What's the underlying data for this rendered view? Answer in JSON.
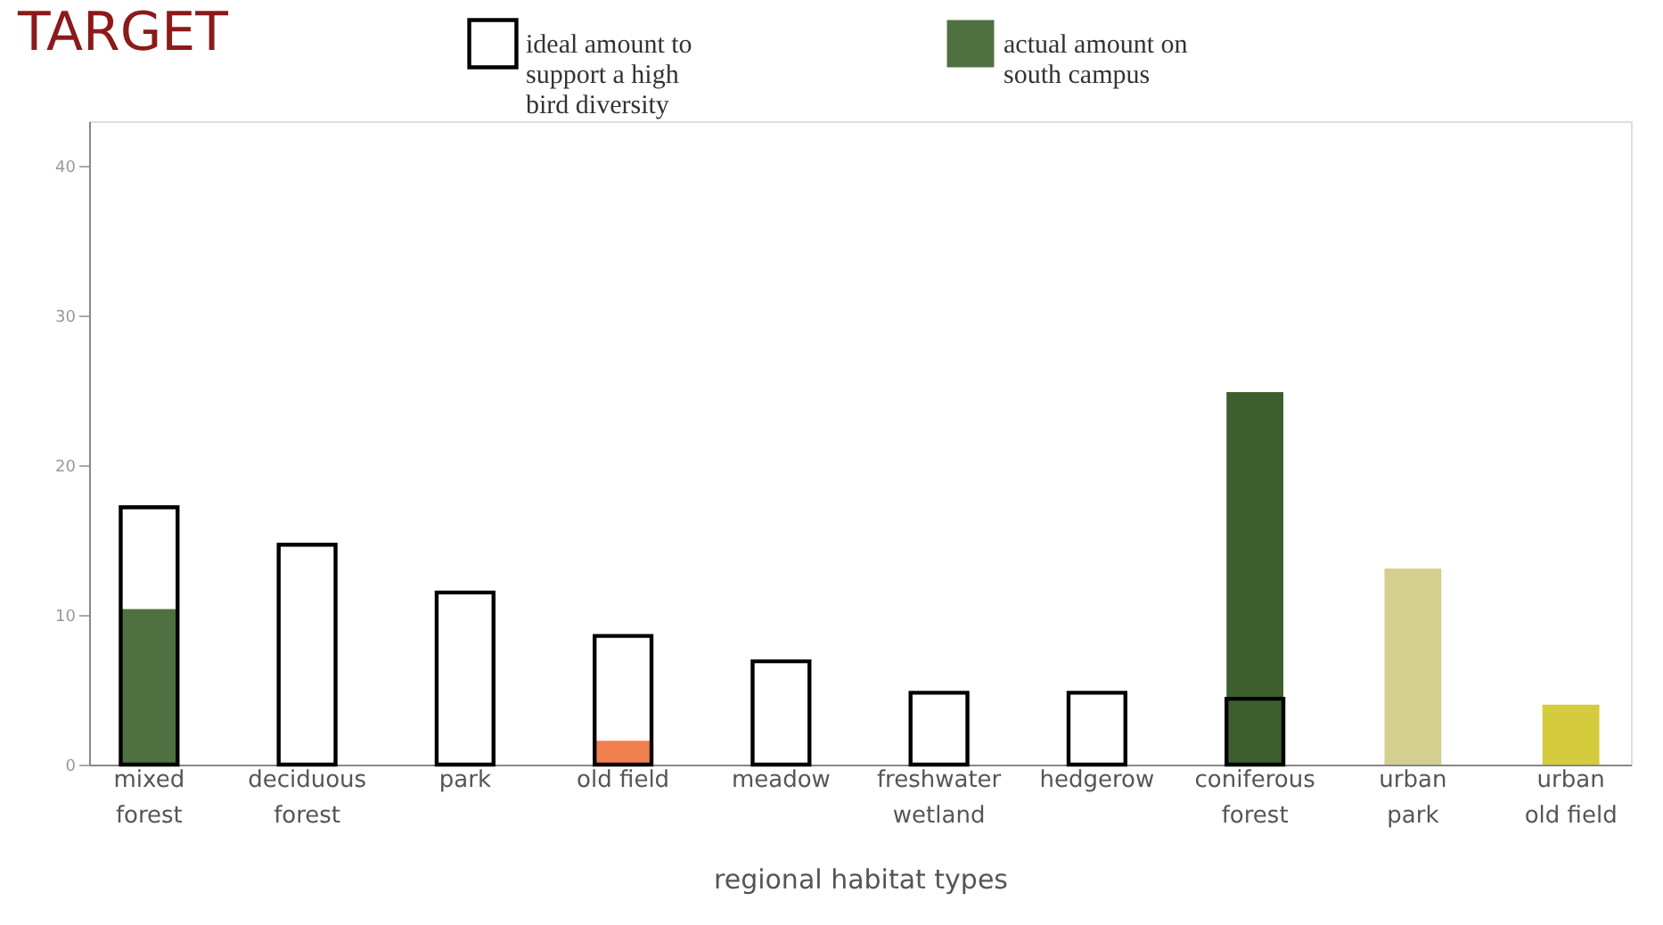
{
  "chart_data": {
    "type": "bar",
    "title": "TARGET",
    "xlabel": "regional habitat types",
    "categories": [
      "mixed forest",
      "deciduous forest",
      "park",
      "old field",
      "meadow",
      "freshwater wetland",
      "hedgerow",
      "coniferous forest",
      "urban park",
      "urban old field"
    ],
    "series": [
      {
        "name": "actual amount on south campus",
        "color": "#4f7040",
        "colors": [
          "#4f7040",
          "#4f7040",
          "#4f7040",
          "#f08050",
          "#3a4a30",
          "#4f7040",
          "#3a4a30",
          "#3d5e2e",
          "#d4cf8f",
          "#d4cc3c"
        ],
        "values": [
          10.4,
          0,
          0,
          1.6,
          0,
          0,
          0,
          24.9,
          13.1,
          4.0
        ]
      },
      {
        "name": "ideal amount to support a high bird diversity",
        "color": "#000000",
        "values": [
          17.2,
          14.7,
          11.5,
          8.6,
          6.9,
          4.8,
          4.8,
          4.4,
          null,
          null
        ]
      }
    ],
    "ylim": [
      0,
      43
    ],
    "yticks": [
      0,
      10,
      20,
      30,
      40
    ],
    "grid": false,
    "legend": "top"
  }
}
